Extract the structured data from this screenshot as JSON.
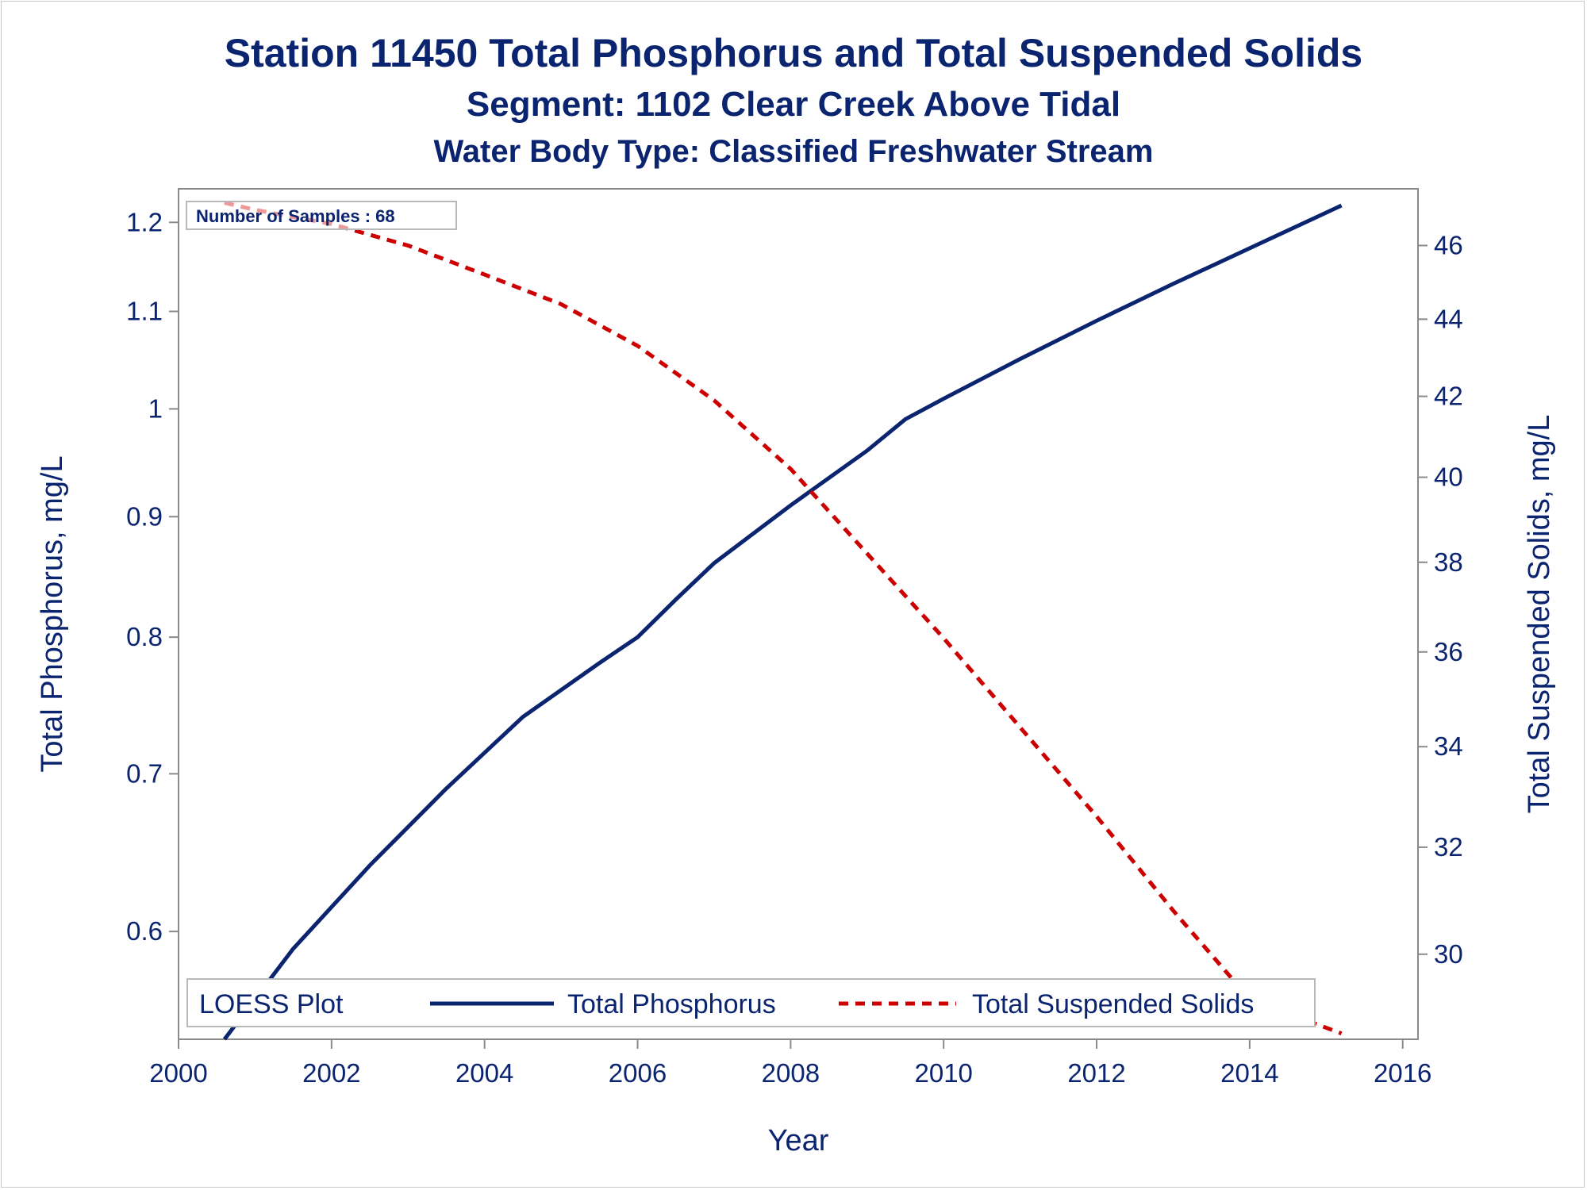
{
  "chart_data": {
    "type": "line",
    "title": "Station 11450  Total Phosphorus and Total Suspended Solids",
    "subtitle": "Segment: 1102  Clear Creek Above Tidal",
    "subtitle2": "Water Body Type: Classified Freshwater Stream",
    "xlabel": "Year",
    "ylabel_left": "Total Phosphorus, mg/L",
    "ylabel_right": "Total Suspended Solids, mg/L",
    "x_ticks": [
      "2000",
      "2002",
      "2004",
      "2006",
      "2008",
      "2010",
      "2012",
      "2014",
      "2016"
    ],
    "y_left_ticks": [
      "0.6",
      "0.7",
      "0.8",
      "0.9",
      "1",
      "1.1",
      "1.2"
    ],
    "y_right_ticks": [
      "30",
      "32",
      "34",
      "36",
      "38",
      "40",
      "42",
      "44",
      "46"
    ],
    "y_left_scale": "log",
    "y_right_scale": "log",
    "xlim": [
      2000,
      2016.2
    ],
    "ylim_left": [
      0.54,
      1.24
    ],
    "ylim_right": [
      28.5,
      47.6
    ],
    "grid": false,
    "annotation": "Number of Samples : 68",
    "legend": {
      "title": "LOESS Plot",
      "placement": "bottom-inside",
      "entries": [
        "Total Phosphorus",
        "Total Suspended Solids"
      ]
    },
    "series": [
      {
        "name": "Total Phosphorus",
        "axis": "left",
        "color": "#0b2470",
        "style": "solid",
        "x": [
          2000.6,
          2001.5,
          2002.5,
          2003.5,
          2004.5,
          2005.5,
          2006.0,
          2006.5,
          2007.0,
          2008.0,
          2009.0,
          2009.5,
          2010.0,
          2011.0,
          2012.0,
          2013.0,
          2014.0,
          2015.2
        ],
        "y": [
          0.54,
          0.59,
          0.64,
          0.69,
          0.74,
          0.78,
          0.8,
          0.83,
          0.86,
          0.91,
          0.96,
          0.99,
          1.01,
          1.05,
          1.09,
          1.13,
          1.17,
          1.22
        ]
      },
      {
        "name": "Total Suspended Solids",
        "axis": "right",
        "color": "#cc0000",
        "style": "dashed",
        "x": [
          2000.6,
          2001.0,
          2002.0,
          2003.0,
          2004.0,
          2005.0,
          2006.0,
          2007.0,
          2008.0,
          2009.0,
          2010.0,
          2011.0,
          2012.0,
          2013.0,
          2014.0,
          2015.2
        ],
        "y": [
          47.2,
          47.0,
          46.6,
          46.0,
          45.2,
          44.4,
          43.3,
          41.9,
          40.2,
          38.2,
          36.3,
          34.4,
          32.6,
          30.8,
          29.2,
          28.6
        ]
      }
    ]
  }
}
